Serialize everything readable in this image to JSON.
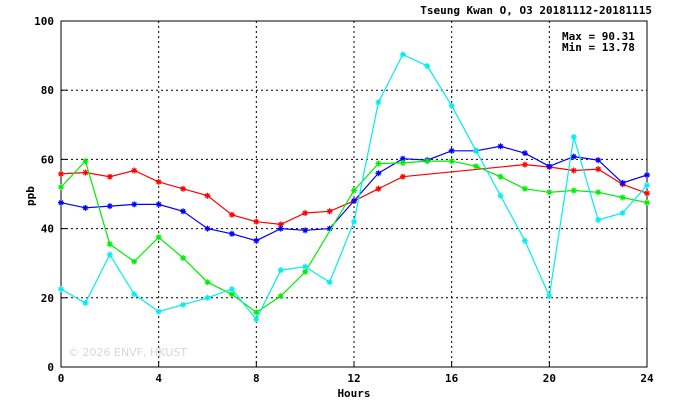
{
  "chart_data": {
    "type": "line",
    "title": "Tseung Kwan O, O3 20181112-20181115",
    "xlabel": "Hours",
    "ylabel": "ppb",
    "xlim": [
      0,
      24
    ],
    "ylim": [
      0,
      100
    ],
    "x_ticks": [
      "0",
      "4",
      "8",
      "12",
      "16",
      "20",
      "24"
    ],
    "y_ticks": [
      "0",
      "20",
      "40",
      "60",
      "80",
      "100"
    ],
    "grid": true,
    "annotations": {
      "max": "Max = 90.31",
      "min": "Min = 13.78"
    },
    "watermark": "© 2026 ENVF, HKUST",
    "series": [
      {
        "color": "#ff0000",
        "x": [
          0,
          1,
          2,
          3,
          4,
          5,
          6,
          7,
          8,
          9,
          10,
          11,
          12,
          13,
          14,
          15,
          16,
          17,
          18,
          19,
          20,
          21,
          22,
          23,
          24
        ],
        "values": [
          55.8,
          56.2,
          55.0,
          56.8,
          53.5,
          51.5,
          49.5,
          44.0,
          42.0,
          41.2,
          44.5,
          45.0,
          48.0,
          51.5,
          55.0,
          null,
          null,
          null,
          null,
          58.5,
          57.8,
          56.8,
          57.2,
          52.8,
          50.2
        ]
      },
      {
        "color": "#0000ff",
        "x": [
          0,
          1,
          2,
          3,
          4,
          5,
          6,
          7,
          8,
          9,
          10,
          11,
          12,
          13,
          14,
          15,
          16,
          17,
          18,
          19,
          20,
          21,
          22,
          23,
          24
        ],
        "values": [
          47.5,
          46.0,
          46.5,
          47.0,
          47.0,
          45.0,
          40.0,
          38.5,
          36.5,
          40.0,
          39.5,
          40.0,
          48.0,
          56.0,
          60.2,
          59.8,
          62.5,
          62.5,
          63.8,
          61.8,
          58.0,
          60.8,
          59.8,
          53.2,
          55.5
        ]
      },
      {
        "color": "#00ee00",
        "x": [
          0,
          1,
          2,
          3,
          4,
          5,
          6,
          7,
          8,
          9,
          10,
          11,
          12,
          13,
          14,
          15,
          16,
          17,
          18,
          19,
          20,
          21,
          22,
          23,
          24
        ],
        "values": [
          52.0,
          59.5,
          35.5,
          30.5,
          37.5,
          31.5,
          24.5,
          21.0,
          15.8,
          20.5,
          27.5,
          null,
          51.0,
          58.8,
          59.0,
          59.5,
          59.5,
          58.0,
          55.0,
          51.5,
          50.5,
          51.0,
          50.5,
          49.0,
          47.5
        ]
      },
      {
        "color": "#00eeee",
        "x": [
          0,
          1,
          2,
          3,
          4,
          5,
          6,
          7,
          8,
          9,
          10,
          11,
          12,
          13,
          14,
          15,
          16,
          17,
          18,
          19,
          20,
          21,
          22,
          23,
          24
        ],
        "values": [
          22.5,
          18.5,
          32.5,
          21.0,
          16.0,
          18.0,
          20.0,
          22.5,
          13.78,
          28.0,
          29.0,
          24.5,
          42.0,
          76.5,
          90.31,
          87.0,
          75.5,
          62.5,
          49.5,
          36.5,
          20.5,
          66.5,
          42.5,
          44.5,
          52.5
        ]
      }
    ]
  }
}
